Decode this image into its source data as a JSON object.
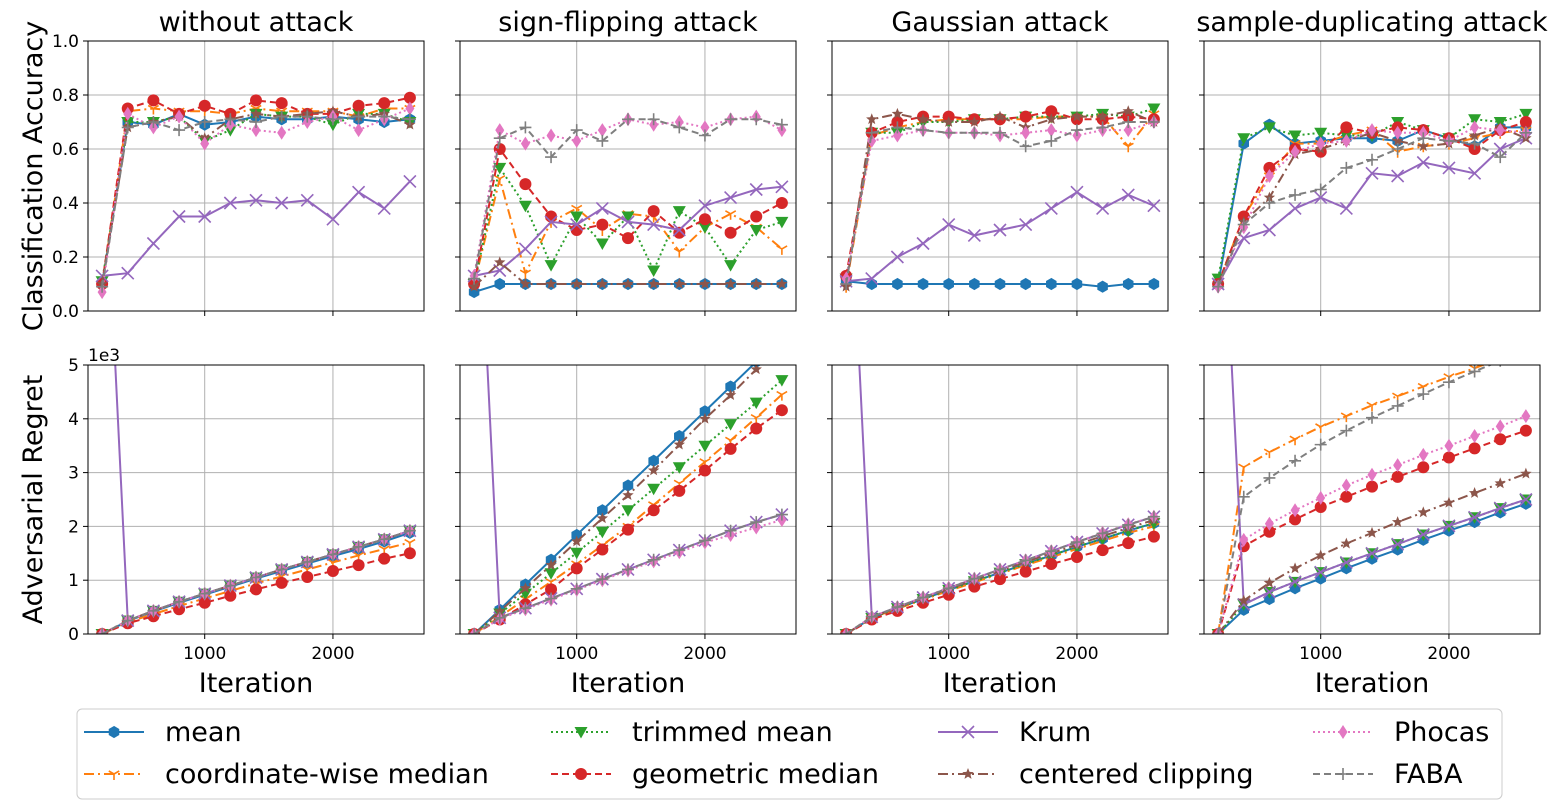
{
  "chart_data": {
    "type": "line",
    "xlabel": "Iteration",
    "row_ylabels": [
      "Classification Accuracy",
      "Adversarial Regret"
    ],
    "x": [
      200,
      400,
      600,
      800,
      1000,
      1200,
      1400,
      1600,
      1800,
      2000,
      2200,
      2400,
      2600
    ],
    "xlim": [
      90,
      2710
    ],
    "xticks": [
      1000,
      2000
    ],
    "xtick_labels": [
      "1000",
      "2000"
    ],
    "accuracy_ylim": [
      0,
      1
    ],
    "accuracy_yticks": [
      "0.0",
      "0.2",
      "0.4",
      "0.6",
      "0.8",
      "1.0"
    ],
    "regret_ylim": [
      0,
      5
    ],
    "regret_yticks": [
      "0",
      "1",
      "2",
      "3",
      "4",
      "5"
    ],
    "regret_offset_label": "1e3",
    "grid": true,
    "legend_position": "bottom",
    "legend": [
      {
        "name": "mean",
        "color": "#1f77b4",
        "dash": "",
        "marker": "hexagon"
      },
      {
        "name": "coordinate-wise median",
        "color": "#ff7f0e",
        "dash": "10,4,2,4",
        "marker": "tri_down"
      },
      {
        "name": "trimmed mean",
        "color": "#2ca02c",
        "dash": "2,3",
        "marker": "triangle_down"
      },
      {
        "name": "geometric median",
        "color": "#d62728",
        "dash": "7,4",
        "marker": "circle"
      },
      {
        "name": "Krum",
        "color": "#9467bd",
        "dash": "",
        "marker": "x"
      },
      {
        "name": "centered clipping",
        "color": "#8c564b",
        "dash": "10,4,2,4",
        "marker": "star"
      },
      {
        "name": "Phocas",
        "color": "#e377c2",
        "dash": "2,3",
        "marker": "diamond"
      },
      {
        "name": "FABA",
        "color": "#7f7f7f",
        "dash": "7,4",
        "marker": "plus"
      }
    ],
    "panels": [
      {
        "title": "without attack",
        "accuracy": {
          "mean": [
            0.1,
            0.7,
            0.69,
            0.73,
            0.69,
            0.7,
            0.72,
            0.71,
            0.71,
            0.72,
            0.71,
            0.7,
            0.71
          ],
          "coordinate-wise median": [
            0.09,
            0.74,
            0.75,
            0.74,
            0.74,
            0.73,
            0.75,
            0.74,
            0.74,
            0.74,
            0.72,
            0.75,
            0.75
          ],
          "trimmed mean": [
            0.11,
            0.7,
            0.7,
            0.72,
            0.63,
            0.67,
            0.73,
            0.72,
            0.72,
            0.69,
            0.73,
            0.73,
            0.7
          ],
          "geometric median": [
            0.1,
            0.75,
            0.78,
            0.73,
            0.76,
            0.73,
            0.78,
            0.77,
            0.73,
            0.73,
            0.76,
            0.77,
            0.79
          ],
          "Krum": [
            0.13,
            0.14,
            0.25,
            0.35,
            0.35,
            0.4,
            0.41,
            0.4,
            0.41,
            0.34,
            0.44,
            0.38,
            0.48
          ],
          "centered clipping": [
            0.1,
            0.68,
            0.7,
            0.72,
            0.64,
            0.71,
            0.73,
            0.72,
            0.73,
            0.74,
            0.72,
            0.73,
            0.69
          ],
          "Phocas": [
            0.07,
            0.73,
            0.68,
            0.72,
            0.62,
            0.69,
            0.67,
            0.66,
            0.7,
            0.72,
            0.67,
            0.71,
            0.75
          ],
          "FABA": [
            0.09,
            0.68,
            0.7,
            0.67,
            0.7,
            0.71,
            0.7,
            0.72,
            0.72,
            0.71,
            0.72,
            0.72,
            0.71
          ]
        },
        "regret": {
          "mean": [
            0,
            0.24,
            0.42,
            0.58,
            0.73,
            0.88,
            1.03,
            1.17,
            1.31,
            1.45,
            1.58,
            1.72,
            1.88
          ],
          "coordinate-wise median": [
            0,
            0.22,
            0.37,
            0.52,
            0.66,
            0.8,
            0.94,
            1.07,
            1.2,
            1.33,
            1.46,
            1.58,
            1.7
          ],
          "trimmed mean": [
            0,
            0.25,
            0.43,
            0.6,
            0.75,
            0.9,
            1.05,
            1.2,
            1.34,
            1.48,
            1.62,
            1.76,
            1.92
          ],
          "geometric median": [
            0,
            0.2,
            0.33,
            0.46,
            0.58,
            0.71,
            0.83,
            0.95,
            1.06,
            1.17,
            1.28,
            1.4,
            1.5
          ],
          "Krum": [
            10,
            0.25,
            0.43,
            0.6,
            0.75,
            0.9,
            1.05,
            1.2,
            1.34,
            1.48,
            1.62,
            1.76,
            1.92
          ],
          "centered clipping": [
            0,
            0.25,
            0.43,
            0.6,
            0.75,
            0.9,
            1.05,
            1.2,
            1.34,
            1.48,
            1.62,
            1.76,
            1.92
          ],
          "Phocas": [
            0,
            0.25,
            0.43,
            0.6,
            0.75,
            0.9,
            1.05,
            1.2,
            1.34,
            1.48,
            1.62,
            1.76,
            1.92
          ],
          "FABA": [
            0,
            0.25,
            0.43,
            0.6,
            0.75,
            0.9,
            1.05,
            1.2,
            1.34,
            1.48,
            1.62,
            1.76,
            1.92
          ]
        }
      },
      {
        "title": "sign-flipping attack",
        "accuracy": {
          "mean": [
            0.07,
            0.1,
            0.1,
            0.1,
            0.1,
            0.1,
            0.1,
            0.1,
            0.1,
            0.1,
            0.1,
            0.1,
            0.1
          ],
          "coordinate-wise median": [
            0.1,
            0.49,
            0.14,
            0.33,
            0.38,
            0.3,
            0.36,
            0.35,
            0.22,
            0.31,
            0.36,
            0.31,
            0.23
          ],
          "trimmed mean": [
            0.1,
            0.53,
            0.39,
            0.17,
            0.35,
            0.25,
            0.35,
            0.15,
            0.37,
            0.31,
            0.17,
            0.3,
            0.33
          ],
          "geometric median": [
            0.1,
            0.6,
            0.47,
            0.35,
            0.3,
            0.32,
            0.27,
            0.37,
            0.29,
            0.34,
            0.29,
            0.35,
            0.4
          ],
          "Krum": [
            0.13,
            0.15,
            0.23,
            0.33,
            0.32,
            0.38,
            0.33,
            0.32,
            0.3,
            0.39,
            0.42,
            0.45,
            0.46
          ],
          "centered clipping": [
            0.09,
            0.18,
            0.1,
            0.1,
            0.1,
            0.1,
            0.1,
            0.1,
            0.1,
            0.1,
            0.1,
            0.1,
            0.1
          ],
          "Phocas": [
            0.13,
            0.67,
            0.62,
            0.65,
            0.63,
            0.67,
            0.71,
            0.69,
            0.7,
            0.68,
            0.71,
            0.72,
            0.67
          ],
          "FABA": [
            0.12,
            0.64,
            0.68,
            0.57,
            0.67,
            0.63,
            0.71,
            0.71,
            0.68,
            0.65,
            0.71,
            0.71,
            0.69
          ]
        },
        "regret": {
          "mean": [
            0,
            0.45,
            0.92,
            1.38,
            1.84,
            2.3,
            2.76,
            3.22,
            3.68,
            4.14,
            4.6,
            5.06,
            5.52
          ],
          "coordinate-wise median": [
            0,
            0.32,
            0.65,
            0.97,
            1.3,
            1.65,
            2.0,
            2.4,
            2.8,
            3.2,
            3.6,
            4.02,
            4.45
          ],
          "trimmed mean": [
            0,
            0.38,
            0.75,
            1.13,
            1.51,
            1.9,
            2.3,
            2.7,
            3.1,
            3.5,
            3.9,
            4.3,
            4.72
          ],
          "geometric median": [
            0,
            0.27,
            0.55,
            0.83,
            1.22,
            1.57,
            1.94,
            2.3,
            2.66,
            3.04,
            3.44,
            3.82,
            4.16
          ],
          "Krum": [
            10,
            0.3,
            0.48,
            0.66,
            0.84,
            1.02,
            1.2,
            1.38,
            1.56,
            1.74,
            1.92,
            2.08,
            2.22
          ],
          "centered clipping": [
            0,
            0.42,
            0.85,
            1.28,
            1.72,
            2.15,
            2.58,
            3.04,
            3.52,
            4.0,
            4.44,
            4.92,
            5.36
          ],
          "Phocas": [
            0,
            0.28,
            0.46,
            0.64,
            0.82,
            1.0,
            1.18,
            1.35,
            1.52,
            1.7,
            1.84,
            1.98,
            2.12
          ],
          "FABA": [
            0,
            0.3,
            0.48,
            0.66,
            0.84,
            1.02,
            1.2,
            1.38,
            1.56,
            1.74,
            1.92,
            2.08,
            2.22
          ]
        }
      },
      {
        "title": "Gaussian attack",
        "accuracy": {
          "mean": [
            0.11,
            0.1,
            0.1,
            0.1,
            0.1,
            0.1,
            0.1,
            0.1,
            0.1,
            0.1,
            0.09,
            0.1,
            0.1
          ],
          "coordinate-wise median": [
            0.09,
            0.65,
            0.68,
            0.7,
            0.71,
            0.71,
            0.71,
            0.71,
            0.72,
            0.72,
            0.72,
            0.61,
            0.73
          ],
          "trimmed mean": [
            0.12,
            0.66,
            0.66,
            0.7,
            0.7,
            0.71,
            0.71,
            0.72,
            0.72,
            0.72,
            0.73,
            0.72,
            0.75
          ],
          "geometric median": [
            0.13,
            0.66,
            0.7,
            0.72,
            0.72,
            0.71,
            0.71,
            0.72,
            0.74,
            0.71,
            0.71,
            0.72,
            0.71
          ],
          "Krum": [
            0.11,
            0.12,
            0.2,
            0.25,
            0.32,
            0.28,
            0.3,
            0.32,
            0.38,
            0.44,
            0.38,
            0.43,
            0.39
          ],
          "centered clipping": [
            0.09,
            0.71,
            0.73,
            0.71,
            0.7,
            0.7,
            0.72,
            0.68,
            0.71,
            0.72,
            0.72,
            0.74,
            0.7
          ],
          "Phocas": [
            0.12,
            0.63,
            0.65,
            0.67,
            0.66,
            0.66,
            0.65,
            0.66,
            0.67,
            0.65,
            0.67,
            0.67,
            0.7
          ],
          "FABA": [
            0.1,
            0.66,
            0.68,
            0.67,
            0.66,
            0.66,
            0.66,
            0.61,
            0.63,
            0.67,
            0.68,
            0.7,
            0.7
          ]
        },
        "regret": {
          "mean": [
            0,
            0.3,
            0.48,
            0.65,
            0.82,
            0.98,
            1.14,
            1.3,
            1.46,
            1.62,
            1.77,
            1.92,
            2.06
          ],
          "coordinate-wise median": [
            0,
            0.3,
            0.47,
            0.64,
            0.8,
            0.96,
            1.12,
            1.28,
            1.43,
            1.58,
            1.73,
            1.88,
            2.0
          ],
          "trimmed mean": [
            0,
            0.3,
            0.48,
            0.65,
            0.82,
            0.98,
            1.14,
            1.3,
            1.46,
            1.62,
            1.77,
            1.92,
            2.06
          ],
          "geometric median": [
            0,
            0.27,
            0.43,
            0.58,
            0.73,
            0.88,
            1.02,
            1.16,
            1.3,
            1.43,
            1.56,
            1.69,
            1.81
          ],
          "Krum": [
            10,
            0.32,
            0.5,
            0.68,
            0.85,
            1.03,
            1.2,
            1.37,
            1.54,
            1.71,
            1.87,
            2.03,
            2.18
          ],
          "centered clipping": [
            0,
            0.31,
            0.49,
            0.66,
            0.84,
            1.01,
            1.17,
            1.34,
            1.5,
            1.66,
            1.82,
            1.97,
            2.12
          ],
          "Phocas": [
            0,
            0.32,
            0.5,
            0.68,
            0.86,
            1.03,
            1.2,
            1.37,
            1.54,
            1.71,
            1.88,
            2.04,
            2.18
          ],
          "FABA": [
            0,
            0.32,
            0.5,
            0.68,
            0.85,
            1.03,
            1.2,
            1.37,
            1.54,
            1.71,
            1.87,
            2.03,
            2.18
          ]
        }
      },
      {
        "title": "sample-duplicating attack",
        "accuracy": {
          "mean": [
            0.1,
            0.62,
            0.69,
            0.62,
            0.63,
            0.64,
            0.64,
            0.63,
            0.67,
            0.64,
            0.61,
            0.68,
            0.68
          ],
          "coordinate-wise median": [
            0.1,
            0.35,
            0.5,
            0.62,
            0.62,
            0.65,
            0.67,
            0.59,
            0.61,
            0.62,
            0.64,
            0.66,
            0.67
          ],
          "trimmed mean": [
            0.12,
            0.64,
            0.68,
            0.65,
            0.66,
            0.65,
            0.65,
            0.7,
            0.67,
            0.64,
            0.71,
            0.7,
            0.73
          ],
          "geometric median": [
            0.1,
            0.35,
            0.53,
            0.6,
            0.59,
            0.68,
            0.66,
            0.68,
            0.67,
            0.64,
            0.6,
            0.67,
            0.7
          ],
          "Krum": [
            0.1,
            0.27,
            0.3,
            0.38,
            0.42,
            0.38,
            0.51,
            0.5,
            0.55,
            0.53,
            0.51,
            0.6,
            0.64
          ],
          "centered clipping": [
            0.1,
            0.33,
            0.42,
            0.58,
            0.6,
            0.63,
            0.66,
            0.63,
            0.61,
            0.62,
            0.65,
            0.68,
            0.64
          ],
          "Phocas": [
            0.09,
            0.31,
            0.5,
            0.59,
            0.62,
            0.63,
            0.67,
            0.66,
            0.66,
            0.63,
            0.68,
            0.67,
            0.66
          ],
          "FABA": [
            0.09,
            0.32,
            0.4,
            0.43,
            0.45,
            0.53,
            0.56,
            0.6,
            0.64,
            0.63,
            0.62,
            0.57,
            0.66
          ]
        },
        "regret": {
          "mean": [
            0,
            0.45,
            0.65,
            0.85,
            1.03,
            1.22,
            1.4,
            1.57,
            1.75,
            1.92,
            2.08,
            2.26,
            2.42
          ],
          "coordinate-wise median": [
            0,
            3.1,
            3.38,
            3.62,
            3.85,
            4.05,
            4.25,
            4.42,
            4.6,
            4.78,
            4.94,
            5.12,
            5.28
          ],
          "trimmed mean": [
            0,
            0.55,
            0.78,
            0.97,
            1.15,
            1.33,
            1.5,
            1.67,
            1.85,
            2.01,
            2.17,
            2.34,
            2.5
          ],
          "geometric median": [
            0,
            1.63,
            1.9,
            2.13,
            2.36,
            2.55,
            2.74,
            2.92,
            3.1,
            3.28,
            3.45,
            3.62,
            3.78
          ],
          "Krum": [
            10,
            0.55,
            0.78,
            0.97,
            1.15,
            1.33,
            1.5,
            1.67,
            1.85,
            2.01,
            2.17,
            2.34,
            2.5
          ],
          "centered clipping": [
            0,
            0.62,
            0.95,
            1.22,
            1.46,
            1.68,
            1.88,
            2.08,
            2.26,
            2.44,
            2.62,
            2.8,
            2.98
          ],
          "Phocas": [
            0,
            1.75,
            2.05,
            2.3,
            2.53,
            2.76,
            2.96,
            3.14,
            3.33,
            3.5,
            3.68,
            3.86,
            4.05
          ],
          "FABA": [
            0,
            2.55,
            2.9,
            3.22,
            3.52,
            3.78,
            4.02,
            4.24,
            4.46,
            4.68,
            4.88,
            5.08,
            5.28
          ]
        }
      }
    ]
  }
}
